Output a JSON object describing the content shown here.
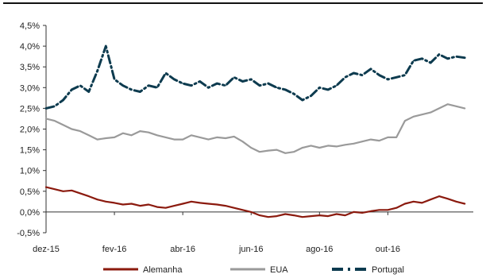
{
  "chart_data": {
    "type": "line",
    "title": "",
    "xlabel": "",
    "ylabel": "",
    "ylim": [
      -0.5,
      4.5
    ],
    "yticks": [
      -0.5,
      0.0,
      0.5,
      1.0,
      1.5,
      2.0,
      2.5,
      3.0,
      3.5,
      4.0,
      4.5
    ],
    "ytick_labels": [
      "-0,5%",
      "0,0%",
      "0,5%",
      "1,0%",
      "1,5%",
      "2,0%",
      "2,5%",
      "3,0%",
      "3,5%",
      "4,0%",
      "4,5%"
    ],
    "xlim": [
      0,
      12.5
    ],
    "xticks": [
      0,
      2,
      4,
      6,
      8,
      10
    ],
    "xtick_labels": [
      "dez-15",
      "fev-16",
      "abr-16",
      "jun-16",
      "ago-16",
      "out-16"
    ],
    "grid": false,
    "legend_position": "bottom",
    "series": [
      {
        "name": "Alemanha",
        "color": "#8b1a0e",
        "style": "solid",
        "x": [
          0,
          0.25,
          0.5,
          0.75,
          1,
          1.25,
          1.5,
          1.75,
          2,
          2.25,
          2.5,
          2.75,
          3,
          3.25,
          3.5,
          3.75,
          4,
          4.25,
          4.5,
          4.75,
          5,
          5.25,
          5.5,
          5.75,
          6,
          6.25,
          6.5,
          6.75,
          7,
          7.25,
          7.5,
          7.75,
          8,
          8.25,
          8.5,
          8.75,
          9,
          9.25,
          9.5,
          9.75,
          10,
          10.25,
          10.5,
          10.75,
          11,
          11.25,
          11.5,
          11.75,
          12,
          12.25
        ],
        "values": [
          0.6,
          0.55,
          0.5,
          0.52,
          0.45,
          0.38,
          0.3,
          0.25,
          0.22,
          0.18,
          0.2,
          0.15,
          0.18,
          0.12,
          0.1,
          0.15,
          0.2,
          0.25,
          0.22,
          0.2,
          0.18,
          0.15,
          0.1,
          0.05,
          0.0,
          -0.08,
          -0.12,
          -0.1,
          -0.05,
          -0.08,
          -0.12,
          -0.1,
          -0.08,
          -0.1,
          -0.05,
          -0.08,
          0.0,
          -0.02,
          0.02,
          0.05,
          0.05,
          0.1,
          0.2,
          0.25,
          0.22,
          0.3,
          0.38,
          0.32,
          0.25,
          0.2
        ]
      },
      {
        "name": "EUA",
        "color": "#9a9a9a",
        "style": "solid",
        "x": [
          0,
          0.25,
          0.5,
          0.75,
          1,
          1.25,
          1.5,
          1.75,
          2,
          2.25,
          2.5,
          2.75,
          3,
          3.25,
          3.5,
          3.75,
          4,
          4.25,
          4.5,
          4.75,
          5,
          5.25,
          5.5,
          5.75,
          6,
          6.25,
          6.5,
          6.75,
          7,
          7.25,
          7.5,
          7.75,
          8,
          8.25,
          8.5,
          8.75,
          9,
          9.25,
          9.5,
          9.75,
          10,
          10.25,
          10.5,
          10.75,
          11,
          11.25,
          11.5,
          11.75,
          12,
          12.25
        ],
        "values": [
          2.25,
          2.2,
          2.1,
          2.0,
          1.95,
          1.85,
          1.75,
          1.78,
          1.8,
          1.9,
          1.85,
          1.95,
          1.92,
          1.85,
          1.8,
          1.75,
          1.75,
          1.85,
          1.8,
          1.75,
          1.8,
          1.78,
          1.82,
          1.7,
          1.55,
          1.45,
          1.48,
          1.5,
          1.42,
          1.45,
          1.55,
          1.6,
          1.55,
          1.6,
          1.58,
          1.62,
          1.65,
          1.7,
          1.75,
          1.72,
          1.8,
          1.8,
          2.2,
          2.3,
          2.35,
          2.4,
          2.5,
          2.6,
          2.55,
          2.5
        ]
      },
      {
        "name": "Portugal",
        "color": "#0d3b4f",
        "style": "dashdot",
        "x": [
          0,
          0.25,
          0.5,
          0.75,
          1,
          1.25,
          1.5,
          1.75,
          2,
          2.25,
          2.5,
          2.75,
          3,
          3.25,
          3.5,
          3.75,
          4,
          4.25,
          4.5,
          4.75,
          5,
          5.25,
          5.5,
          5.75,
          6,
          6.25,
          6.5,
          6.75,
          7,
          7.25,
          7.5,
          7.75,
          8,
          8.25,
          8.5,
          8.75,
          9,
          9.25,
          9.5,
          9.75,
          10,
          10.25,
          10.5,
          10.75,
          11,
          11.25,
          11.5,
          11.75,
          12,
          12.25
        ],
        "values": [
          2.5,
          2.55,
          2.7,
          2.95,
          3.05,
          2.9,
          3.4,
          4.0,
          3.2,
          3.05,
          2.95,
          2.9,
          3.05,
          3.0,
          3.35,
          3.2,
          3.1,
          3.05,
          3.15,
          3.0,
          3.1,
          3.05,
          3.25,
          3.15,
          3.2,
          3.05,
          3.1,
          3.0,
          2.95,
          2.85,
          2.7,
          2.8,
          3.0,
          2.95,
          3.05,
          3.25,
          3.35,
          3.3,
          3.45,
          3.3,
          3.2,
          3.25,
          3.3,
          3.65,
          3.7,
          3.6,
          3.8,
          3.7,
          3.75,
          3.72
        ]
      }
    ]
  }
}
